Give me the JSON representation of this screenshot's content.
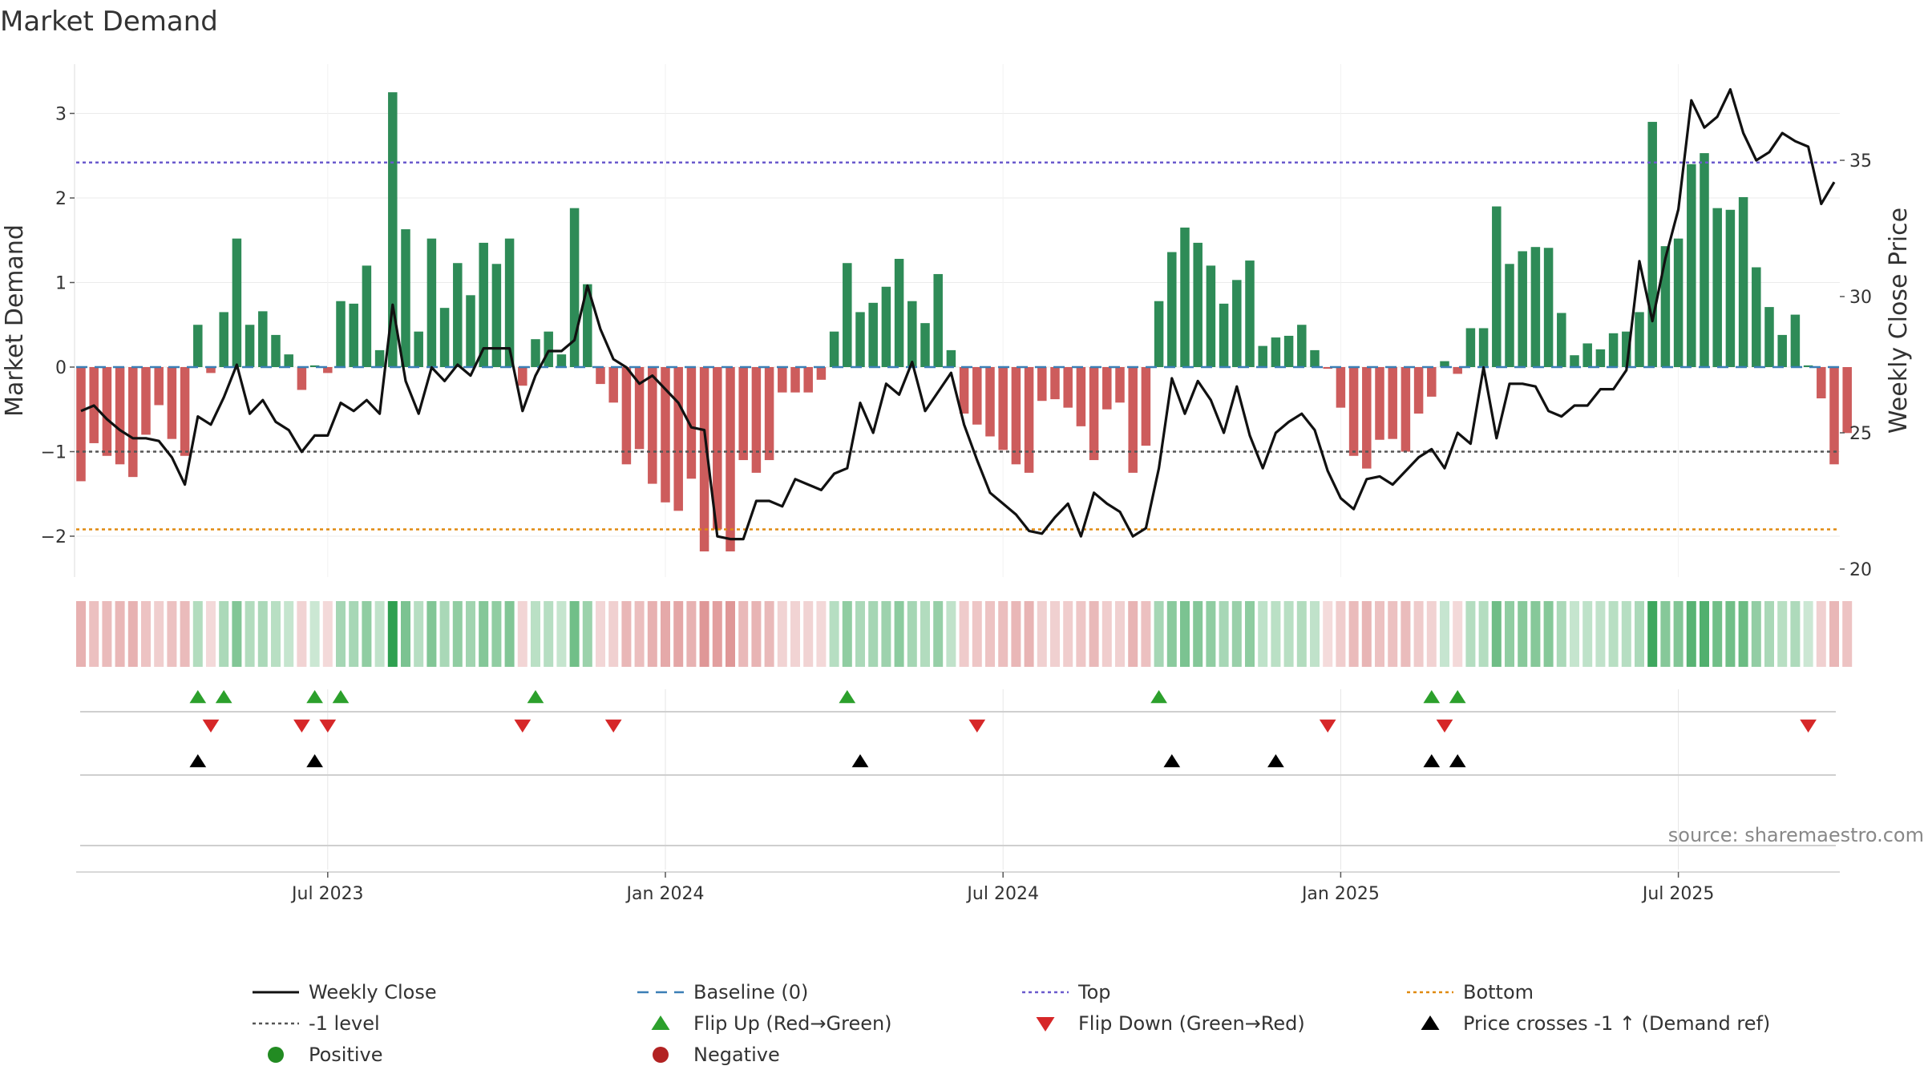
{
  "chart_data": {
    "type": "bar+line",
    "title": "Market Demand",
    "ylabel_left": "Market Demand",
    "ylabel_right": "Weekly Close Price",
    "source": "source: sharemaestro.com",
    "ylim_left": [
      -2.45,
      3.5
    ],
    "ylim_right": [
      19.8,
      38.6
    ],
    "left_ticks": [
      {
        "value": 3,
        "label": "3"
      },
      {
        "value": 2,
        "label": "2"
      },
      {
        "value": 1,
        "label": "1"
      },
      {
        "value": 0,
        "label": "0"
      },
      {
        "value": -1,
        "label": "−1"
      },
      {
        "value": -2,
        "label": "−2"
      }
    ],
    "right_ticks": [
      {
        "value": 35,
        "label": "35"
      },
      {
        "value": 30,
        "label": "30"
      },
      {
        "value": 25,
        "label": "25"
      },
      {
        "value": 20,
        "label": "20"
      }
    ],
    "x_ticks": [
      {
        "week": 19,
        "label": "Jul 2023"
      },
      {
        "week": 45,
        "label": "Jan 2024"
      },
      {
        "week": 71,
        "label": "Jul 2024"
      },
      {
        "week": 97,
        "label": "Jan 2025"
      },
      {
        "week": 123,
        "label": "Jul 2025"
      }
    ],
    "levels": {
      "baseline": 0,
      "top": 2.42,
      "minus_one": -1,
      "bottom": -1.92
    },
    "demand": [
      -1.35,
      -0.9,
      -1.05,
      -1.15,
      -1.3,
      -0.8,
      -0.45,
      -0.85,
      -1.05,
      0.5,
      -0.07,
      0.65,
      1.52,
      0.5,
      0.66,
      0.38,
      0.15,
      -0.27,
      0.02,
      -0.07,
      0.78,
      0.75,
      1.2,
      0.2,
      3.25,
      1.63,
      0.42,
      1.52,
      0.7,
      1.23,
      0.85,
      1.47,
      1.22,
      1.52,
      -0.22,
      0.33,
      0.42,
      0.15,
      1.88,
      0.98,
      -0.2,
      -0.42,
      -1.15,
      -0.97,
      -1.38,
      -1.6,
      -1.7,
      -1.32,
      -2.18,
      -1.92,
      -2.18,
      -1.1,
      -1.25,
      -1.1,
      -0.3,
      -0.3,
      -0.3,
      -0.15,
      0.42,
      1.23,
      0.65,
      0.76,
      0.95,
      1.28,
      0.78,
      0.52,
      1.1,
      0.2,
      -0.55,
      -0.68,
      -0.82,
      -0.98,
      -1.15,
      -1.25,
      -0.4,
      -0.38,
      -0.48,
      -0.7,
      -1.1,
      -0.5,
      -0.42,
      -1.25,
      -0.93,
      0.78,
      1.36,
      1.65,
      1.47,
      1.2,
      0.75,
      1.03,
      1.26,
      0.25,
      0.35,
      0.37,
      0.5,
      0.2,
      -0.02,
      -0.48,
      -1.05,
      -1.2,
      -0.86,
      -0.85,
      -1.0,
      -0.55,
      -0.35,
      0.07,
      -0.08,
      0.46,
      0.46,
      1.9,
      1.22,
      1.37,
      1.42,
      1.41,
      0.64,
      0.14,
      0.28,
      0.21,
      0.4,
      0.42,
      0.65,
      2.9,
      1.43,
      1.52,
      2.4,
      2.53,
      1.88,
      1.86,
      2.01,
      1.18,
      0.71,
      0.38,
      0.62,
      0.02,
      -0.37,
      -1.15,
      -0.78
    ],
    "close": [
      25.8,
      26.0,
      25.5,
      25.1,
      24.8,
      24.8,
      24.7,
      24.1,
      23.1,
      25.6,
      25.3,
      26.3,
      27.5,
      25.7,
      26.2,
      25.4,
      25.1,
      24.3,
      24.9,
      24.9,
      26.1,
      25.8,
      26.2,
      25.7,
      29.7,
      26.9,
      25.7,
      27.4,
      26.9,
      27.5,
      27.1,
      28.1,
      28.1,
      28.1,
      25.8,
      27.1,
      28.0,
      28.0,
      28.4,
      30.4,
      28.8,
      27.7,
      27.4,
      26.8,
      27.1,
      26.6,
      26.1,
      25.2,
      25.1,
      21.2,
      21.1,
      21.1,
      22.5,
      22.5,
      22.3,
      23.3,
      23.1,
      22.9,
      23.5,
      23.7,
      26.1,
      25.0,
      26.8,
      26.4,
      27.6,
      25.8,
      26.5,
      27.2,
      25.3,
      24.0,
      22.8,
      22.4,
      22.0,
      21.4,
      21.3,
      21.9,
      22.4,
      21.2,
      22.8,
      22.4,
      22.1,
      21.2,
      21.5,
      23.7,
      27.0,
      25.7,
      26.9,
      26.2,
      25.0,
      26.7,
      24.9,
      23.7,
      25.0,
      25.4,
      25.7,
      25.1,
      23.6,
      22.6,
      22.2,
      23.3,
      23.4,
      23.1,
      23.6,
      24.1,
      24.4,
      23.7,
      25.0,
      24.6,
      27.4,
      24.8,
      26.8,
      26.8,
      26.7,
      25.8,
      25.6,
      26.0,
      26.0,
      26.6,
      26.6,
      27.3,
      31.3,
      29.1,
      31.4,
      33.2,
      37.2,
      36.2,
      36.6,
      37.6,
      36.0,
      35.0,
      35.3,
      36.0,
      35.7,
      35.5,
      33.4,
      34.2
    ],
    "flip_up_weeks": [
      9,
      11,
      18,
      20,
      35,
      59,
      83,
      104,
      106
    ],
    "flip_down_weeks": [
      10,
      17,
      19,
      34,
      41,
      69,
      96,
      105,
      133
    ],
    "price_cross_weeks": [
      9,
      18,
      60,
      84,
      92,
      104,
      106
    ],
    "legend": [
      {
        "key": "weekly_close",
        "label": "Weekly Close",
        "symbol": "line-solid",
        "color": "#111111"
      },
      {
        "key": "baseline",
        "label": "Baseline (0)",
        "symbol": "line-dash",
        "color": "#3b7fb6"
      },
      {
        "key": "top",
        "label": "Top",
        "symbol": "line-dot",
        "color": "#6a5acd"
      },
      {
        "key": "bottom",
        "label": "Bottom",
        "symbol": "line-dot",
        "color": "#e08a10"
      },
      {
        "key": "minus_one",
        "label": "-1 level",
        "symbol": "line-dot",
        "color": "#555555"
      },
      {
        "key": "flip_up",
        "label": "Flip Up (Red→Green)",
        "symbol": "tri-up",
        "color": "#2ca02c"
      },
      {
        "key": "flip_down",
        "label": "Flip Down (Green→Red)",
        "symbol": "tri-down",
        "color": "#d62728"
      },
      {
        "key": "price_cross",
        "label": "Price crosses -1 ↑ (Demand ref)",
        "symbol": "tri-up",
        "color": "#000000"
      },
      {
        "key": "positive",
        "label": "Positive",
        "symbol": "dot",
        "color": "#228b22"
      },
      {
        "key": "negative",
        "label": "Negative",
        "symbol": "dot",
        "color": "#b22222"
      }
    ],
    "colors": {
      "positive_bar": "#2e8b57",
      "negative_bar": "#cd5c5c",
      "close_line": "#111111",
      "baseline": "#3b7fb6",
      "top": "#6a5acd",
      "bottom": "#e08a10",
      "minus_one": "#555555",
      "flip_up": "#2ca02c",
      "flip_down": "#d62728",
      "price_cross": "#000000",
      "grid": "#ebebeb"
    }
  }
}
